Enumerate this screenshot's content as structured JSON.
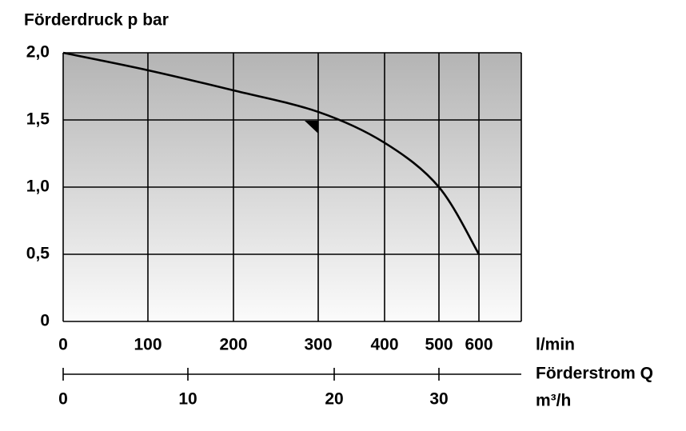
{
  "chart_data": {
    "type": "line",
    "y_label": "Förderdruck p bar",
    "x_label": "l/min",
    "x2_title": "Förderstrom Q",
    "x2_label": "m³/h",
    "x": [
      0,
      100,
      200,
      300,
      400,
      500,
      600
    ],
    "series": [
      {
        "color": "#000000",
        "values": [
          2.0,
          1.87,
          1.72,
          1.56,
          1.33,
          1.0,
          0.5
        ]
      }
    ],
    "xticks": [
      0,
      100,
      200,
      300,
      400,
      500,
      600
    ],
    "ylim": [
      0,
      2
    ],
    "yticks": [
      {
        "value": 0,
        "label": "0"
      },
      {
        "value": 0.5,
        "label": "0,5"
      },
      {
        "value": 1,
        "label": "1,0"
      },
      {
        "value": 1.5,
        "label": "1,5"
      },
      {
        "value": 2,
        "label": "2,0"
      }
    ],
    "x2ticks": [
      0,
      10,
      20,
      30
    ],
    "grid": true
  }
}
